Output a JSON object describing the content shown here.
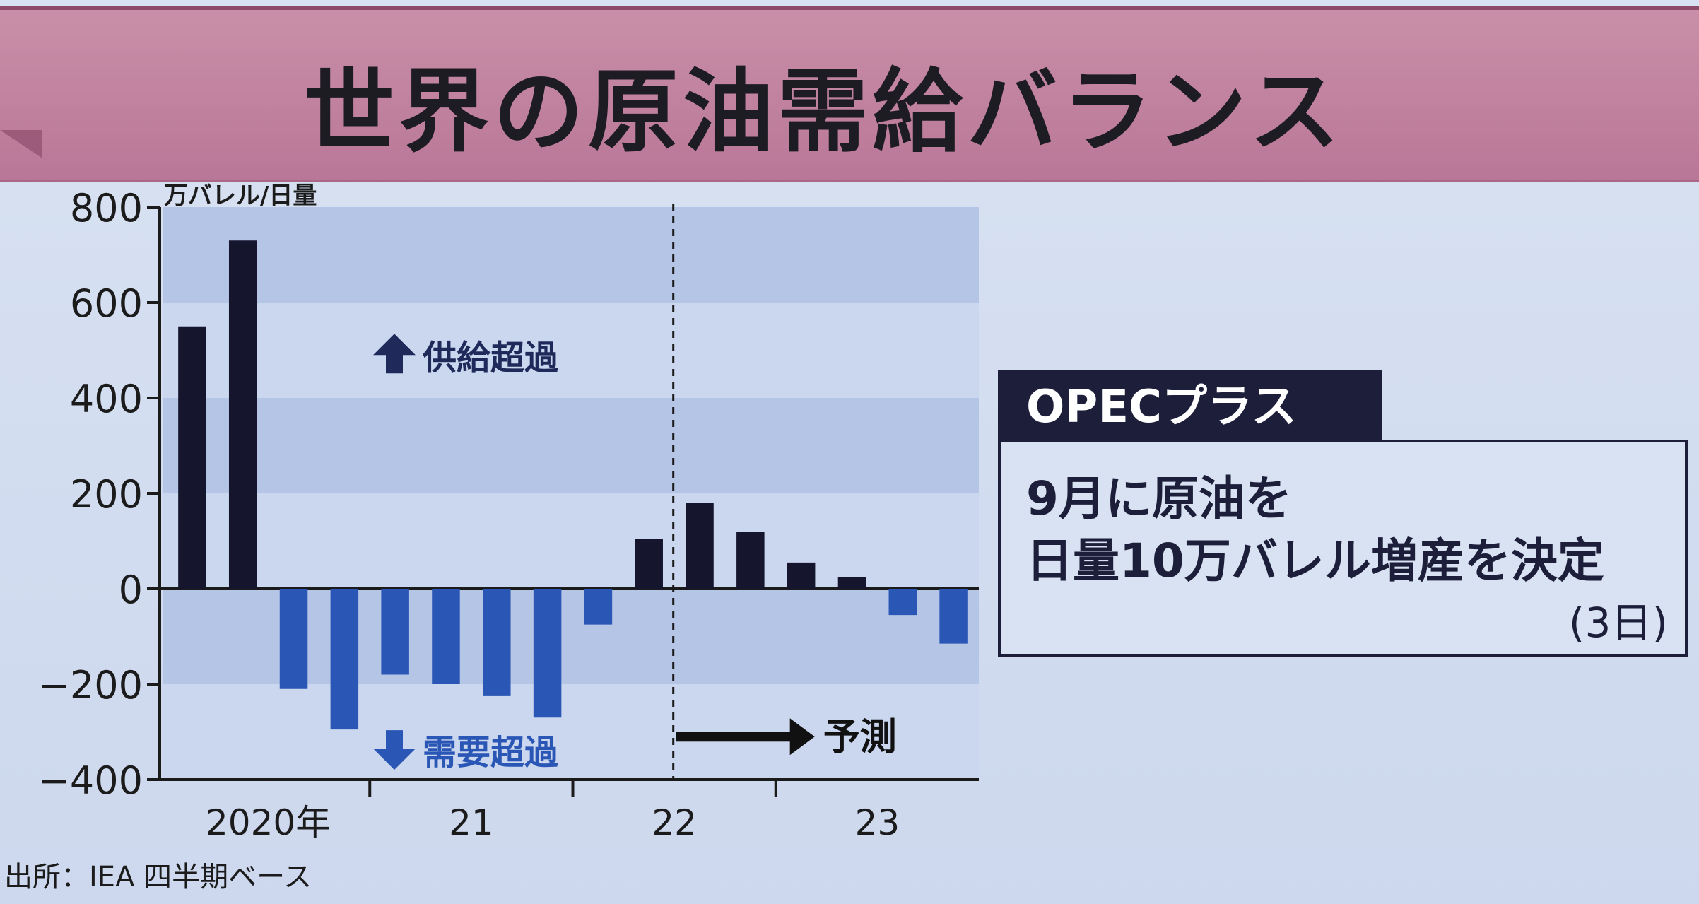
{
  "header": {
    "title": "世界の原油需給バランス"
  },
  "chart_data": {
    "type": "bar",
    "ylabel": "万バレル/日量",
    "ylim": [
      -400,
      800
    ],
    "y_ticks": [
      800,
      600,
      400,
      200,
      0,
      -200,
      -400
    ],
    "y_tick_labels": [
      "800",
      "600",
      "400",
      "200",
      "0",
      "−200",
      "−400"
    ],
    "categories": [
      "2020Q1",
      "2020Q2",
      "2020Q3",
      "2020Q4",
      "2021Q1",
      "2021Q2",
      "2021Q3",
      "2021Q4",
      "2022Q1",
      "2022Q2",
      "2022Q3",
      "2022Q4",
      "2023Q1",
      "2023Q2",
      "2023Q3",
      "2023Q4"
    ],
    "values": [
      550,
      730,
      -210,
      -295,
      -180,
      -200,
      -225,
      -270,
      -75,
      105,
      180,
      120,
      55,
      25,
      -55,
      -115
    ],
    "forecast_start_index": 10,
    "x_group_labels": [
      {
        "label": "2020年",
        "start_index": 0
      },
      {
        "label": "21",
        "start_index": 4
      },
      {
        "label": "22",
        "start_index": 8
      },
      {
        "label": "23",
        "start_index": 12
      }
    ],
    "annotations": {
      "supply_surplus": "供給超過",
      "demand_surplus": "需要超過",
      "forecast": "予測"
    },
    "colors": {
      "positive": "#15152e",
      "negative": "#2a56b5",
      "band_dark": "#b5c5e6",
      "band_light": "#cad7ee",
      "text": "#1b1b1b",
      "annotation": "#1f2a5a"
    }
  },
  "opec": {
    "title": "OPECプラス",
    "line1": "9月に原油を",
    "line2": "日量10万バレル増産を決定",
    "date": "(3日)"
  },
  "source": {
    "text": "出所：IEA 四半期ベース"
  }
}
